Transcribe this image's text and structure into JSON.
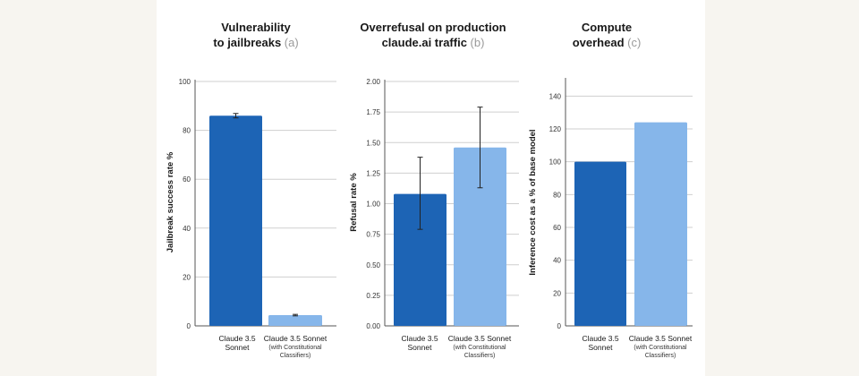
{
  "colors": {
    "base": "#1d64b5",
    "classifier": "#86b6ea"
  },
  "chart_data": [
    {
      "type": "bar",
      "title": "Vulnerability to jailbreaks",
      "title_lines": [
        "Vulnerability",
        "to jailbreaks"
      ],
      "title_tag": "(a)",
      "ylabel": "Jailbreak success rate %",
      "ylim": [
        0,
        100
      ],
      "yticks": [
        0,
        20,
        40,
        60,
        80,
        100
      ],
      "ytick_labels": [
        "0",
        "20",
        "40",
        "60",
        "80",
        "100"
      ],
      "categories": [
        "Claude 3.5 Sonnet",
        "Claude 3.5 Sonnet (with Constitutional Classifiers)"
      ],
      "category_lines": [
        [
          "Claude 3.5",
          "Sonnet"
        ],
        [
          "Claude 3.5 Sonnet"
        ]
      ],
      "category_sublines": [
        [],
        [
          "(with Constitutional",
          "Classifiers)"
        ]
      ],
      "values": [
        86,
        4.4
      ],
      "errors": [
        [
          85.1,
          86.9
        ],
        [
          4.1,
          4.7
        ]
      ]
    },
    {
      "type": "bar",
      "title": "Overrefusal on production claude.ai traffic",
      "title_lines": [
        "Overrefusal on production",
        "claude.ai traffic"
      ],
      "title_tag": "(b)",
      "ylabel": "Refusal rate %",
      "ylim": [
        0,
        2
      ],
      "yticks": [
        0,
        0.25,
        0.5,
        0.75,
        1,
        1.25,
        1.5,
        1.75,
        2
      ],
      "ytick_labels": [
        "0.00",
        "0.25",
        "0.50",
        "0.75",
        "1.00",
        "1.25",
        "1.50",
        "1.75",
        "2.00"
      ],
      "categories": [
        "Claude 3.5 Sonnet",
        "Claude 3.5 Sonnet (with Constitutional Classifiers)"
      ],
      "category_lines": [
        [
          "Claude 3.5",
          "Sonnet"
        ],
        [
          "Claude 3.5 Sonnet"
        ]
      ],
      "category_sublines": [
        [],
        [
          "(with Constitutional",
          "Classifiers)"
        ]
      ],
      "values": [
        1.08,
        1.46
      ],
      "errors": [
        [
          0.79,
          1.38
        ],
        [
          1.13,
          1.79
        ]
      ]
    },
    {
      "type": "bar",
      "title": "Compute overhead",
      "title_lines": [
        "Compute",
        "overhead"
      ],
      "title_tag": "(c)",
      "ylabel": "Inference cost as a % of base model",
      "ylim": [
        0,
        150
      ],
      "yticks": [
        0,
        20,
        40,
        60,
        80,
        100,
        120,
        140
      ],
      "ytick_labels": [
        "0",
        "20",
        "40",
        "60",
        "80",
        "100",
        "120",
        "140"
      ],
      "categories": [
        "Claude 3.5 Sonnet",
        "Claude 3.5 Sonnet (with Constitutional Classifiers)"
      ],
      "category_lines": [
        [
          "Claude 3.5",
          "Sonnet"
        ],
        [
          "Claude 3.5 Sonnet"
        ]
      ],
      "category_sublines": [
        [],
        [
          "(with Constitutional",
          "Classifiers)"
        ]
      ],
      "values": [
        100,
        124
      ],
      "errors": null
    }
  ]
}
